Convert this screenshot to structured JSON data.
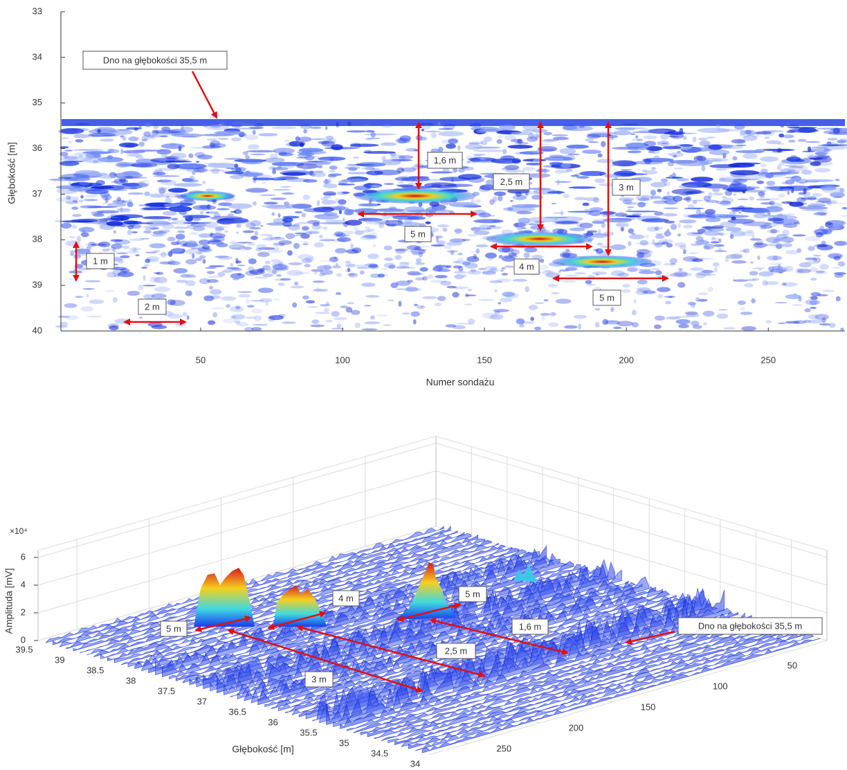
{
  "chart_data": [
    {
      "type": "radargram",
      "xlabel": "Numer sondażu",
      "ylabel": "Głębokość [m]",
      "xlim": [
        1,
        277
      ],
      "ylim": [
        33,
        40
      ],
      "y_reversed": true,
      "xticks": [
        50,
        100,
        150,
        200,
        250
      ],
      "yticks": [
        33,
        34,
        35,
        36,
        37,
        38,
        39,
        40
      ],
      "annotations": [
        "Dno na głębokości 35,5 m",
        "1,6 m",
        "2,5 m",
        "3 m",
        "5 m",
        "4 m",
        "5 m",
        "1 m",
        "2 m"
      ]
    },
    {
      "type": "surface3d",
      "xlabel": "Głębokość [m]",
      "zlabel": "Amplituda [mV]",
      "zscale_label": "×10⁴",
      "xlim": [
        34,
        39.5
      ],
      "xticks": [
        34,
        34.5,
        35,
        35.5,
        36,
        36.5,
        37,
        37.5,
        38,
        38.5,
        39,
        39.5
      ],
      "ylim": [
        1,
        277
      ],
      "yticks": [
        50,
        100,
        150,
        200,
        250
      ],
      "zlim": [
        0,
        6.5
      ],
      "zticks": [
        0,
        2,
        4,
        6
      ],
      "annotations": [
        "5 m",
        "4 m",
        "5 m",
        "1,6 m",
        "2,5 m",
        "3 m",
        "Dno na głębokości 35,5 m"
      ]
    }
  ]
}
